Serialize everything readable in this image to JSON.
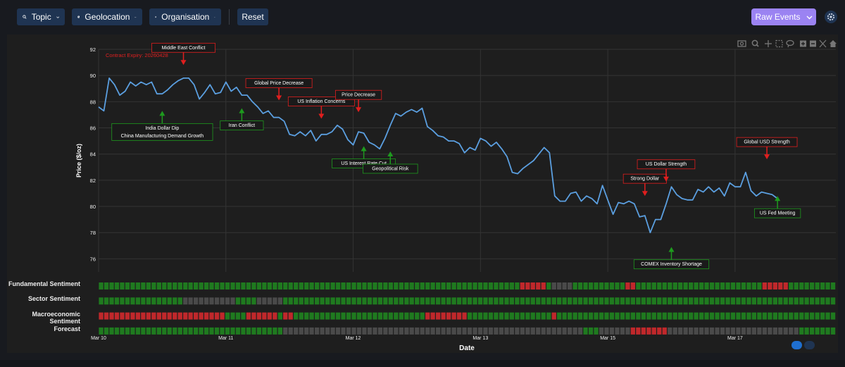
{
  "toolbar": {
    "topic_label": "Topic",
    "geolocation_label": "Geolocation",
    "organisation_label": "Organisation",
    "reset_label": "Reset",
    "raw_events_label": "Raw Events"
  },
  "colors": {
    "line": "#5b9fe0",
    "bull": "#1f7a1f",
    "bear": "#c0282b",
    "neutral": "#4a4a4a",
    "button": "#1f3452",
    "accent": "#9b83f2"
  },
  "chart_data": {
    "type": "line",
    "ylabel": "Price ($/oz)",
    "xlabel": "Date",
    "ylim": [
      75,
      92
    ],
    "yticks": [
      76,
      78,
      80,
      82,
      84,
      86,
      88,
      90,
      92
    ],
    "xlim": [
      0,
      139
    ],
    "x_ticks": [
      {
        "label": "Mar 10",
        "x": 0
      },
      {
        "label": "Mar 11",
        "x": 24
      },
      {
        "label": "Mar 12",
        "x": 48
      },
      {
        "label": "Mar 13",
        "x": 72
      },
      {
        "label": "Mar 15",
        "x": 96
      },
      {
        "label": "Mar 17",
        "x": 120
      }
    ],
    "contract_expiry": "Contract Expiry: 20260428",
    "series": [
      {
        "name": "Price",
        "values": [
          87.6,
          87.3,
          89.8,
          89.3,
          88.5,
          88.8,
          89.5,
          89.2,
          89.5,
          89.3,
          89.5,
          88.6,
          88.6,
          88.9,
          89.3,
          89.6,
          89.8,
          89.8,
          89.3,
          88.2,
          88.7,
          89.3,
          88.6,
          88.7,
          89.5,
          88.8,
          89.1,
          88.5,
          88.5,
          88.0,
          87.6,
          87.1,
          87.3,
          86.8,
          86.8,
          86.5,
          85.5,
          85.4,
          85.7,
          85.4,
          85.8,
          85.0,
          85.5,
          85.5,
          85.7,
          86.2,
          85.9,
          85.1,
          84.7,
          85.7,
          85.6,
          84.9,
          84.7,
          84.4,
          85.2,
          86.2,
          87.1,
          86.9,
          87.2,
          87.4,
          87.2,
          87.5,
          86.1,
          85.8,
          85.4,
          85.3,
          85.0,
          85.0,
          84.8,
          84.1,
          84.5,
          84.3,
          85.2,
          85.0,
          84.6,
          84.9,
          84.4,
          83.8,
          82.6,
          82.5,
          82.9,
          83.2,
          83.5,
          84.0,
          84.5,
          84.1,
          80.8,
          80.4,
          80.4,
          81.0,
          81.1,
          80.4,
          80.8,
          80.6,
          80.2,
          81.6,
          80.5,
          79.4,
          80.3,
          80.2,
          80.4,
          80.2,
          79.2,
          79.3,
          78.0,
          79.0,
          79.0,
          80.2,
          81.5,
          80.9,
          80.6,
          80.5,
          80.5,
          81.3,
          81.1,
          81.5,
          81.1,
          81.4,
          80.8,
          81.8,
          81.5,
          81.5,
          82.6,
          81.2,
          80.8,
          81.1,
          81.0,
          80.9,
          80.6
        ]
      }
    ],
    "annotations": [
      {
        "text": "Middle East Conflict",
        "x": 16,
        "y": 90.8,
        "type": "bear"
      },
      {
        "text": "India Dollar Dip",
        "x": 12,
        "y": 87.3,
        "type": "bull"
      },
      {
        "text": "China Manufacturing Demand Growth",
        "x": 12,
        "y": 87.3,
        "type": "bull"
      },
      {
        "text": "Iran Conflict",
        "x": 27,
        "y": 87.5,
        "type": "bull"
      },
      {
        "text": "Global Price Decrease",
        "x": 34,
        "y": 88.1,
        "type": "bear"
      },
      {
        "text": "US Inflation Concerns",
        "x": 42,
        "y": 86.7,
        "type": "bear"
      },
      {
        "text": "Price Decrease",
        "x": 49,
        "y": 87.2,
        "type": "bear"
      },
      {
        "text": "US Interest Rate Cut",
        "x": 50,
        "y": 84.6,
        "type": "bull"
      },
      {
        "text": "Geopolitical Risk",
        "x": 55,
        "y": 84.2,
        "type": "bull"
      },
      {
        "text": "Strong Dollar",
        "x": 103,
        "y": 80.8,
        "type": "bear"
      },
      {
        "text": "US Dollar Strength",
        "x": 107,
        "y": 81.9,
        "type": "bear"
      },
      {
        "text": "COMEX Inventory Shortage",
        "x": 108,
        "y": 76.9,
        "type": "bull"
      },
      {
        "text": "Global USD Strength",
        "x": 126,
        "y": 83.6,
        "type": "bear"
      },
      {
        "text": "US Fed Meeting",
        "x": 128,
        "y": 80.8,
        "type": "bull"
      }
    ],
    "sentiment_rows": [
      {
        "label": "Fundamental Sentiment",
        "segments": [
          {
            "s": "bull",
            "n": 80
          },
          {
            "s": "bear",
            "n": 5
          },
          {
            "s": "bull",
            "n": 1
          },
          {
            "s": "neutral",
            "n": 4
          },
          {
            "s": "bull",
            "n": 10
          },
          {
            "s": "bear",
            "n": 2
          },
          {
            "s": "bull",
            "n": 24
          },
          {
            "s": "bear",
            "n": 5
          },
          {
            "s": "bull",
            "n": 9
          }
        ]
      },
      {
        "label": "Sector Sentiment",
        "segments": [
          {
            "s": "bull",
            "n": 16
          },
          {
            "s": "neutral",
            "n": 10
          },
          {
            "s": "bull",
            "n": 4
          },
          {
            "s": "neutral",
            "n": 5
          },
          {
            "s": "bull",
            "n": 105
          }
        ]
      },
      {
        "label": "Macroeconomic Sentiment",
        "segments": [
          {
            "s": "bear",
            "n": 24
          },
          {
            "s": "bull",
            "n": 4
          },
          {
            "s": "bear",
            "n": 6
          },
          {
            "s": "bull",
            "n": 1
          },
          {
            "s": "bear",
            "n": 2
          },
          {
            "s": "bull",
            "n": 25
          },
          {
            "s": "bear",
            "n": 8
          },
          {
            "s": "bull",
            "n": 16
          },
          {
            "s": "bear",
            "n": 1
          },
          {
            "s": "bull",
            "n": 53
          }
        ]
      },
      {
        "label": "Forecast",
        "segments": [
          {
            "s": "bull",
            "n": 35
          },
          {
            "s": "neutral",
            "n": 57
          },
          {
            "s": "bull",
            "n": 3
          },
          {
            "s": "neutral",
            "n": 6
          },
          {
            "s": "bear",
            "n": 7
          },
          {
            "s": "neutral",
            "n": 25
          },
          {
            "s": "bull",
            "n": 7
          }
        ]
      }
    ]
  }
}
